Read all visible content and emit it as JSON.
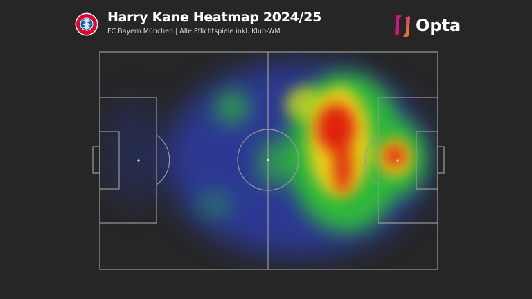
{
  "header": {
    "title": "Harry Kane Heatmap 2024/25",
    "subtitle": "FC Bayern München | Alle Pflichtspiele inkl. Klub-WM",
    "club_logo_text": "FC BAYERN MÜNCHEN"
  },
  "brand": {
    "name": "Opta",
    "gradient_colors": [
      "#c9187f",
      "#f7921e"
    ]
  },
  "colors": {
    "background": "#262626",
    "pitch_lines": "#9a9a9a",
    "heat_low": "#3040c0",
    "heat_mid": "#30c030",
    "heat_high_mid": "#e0e020",
    "heat_high": "#e01010"
  }
}
